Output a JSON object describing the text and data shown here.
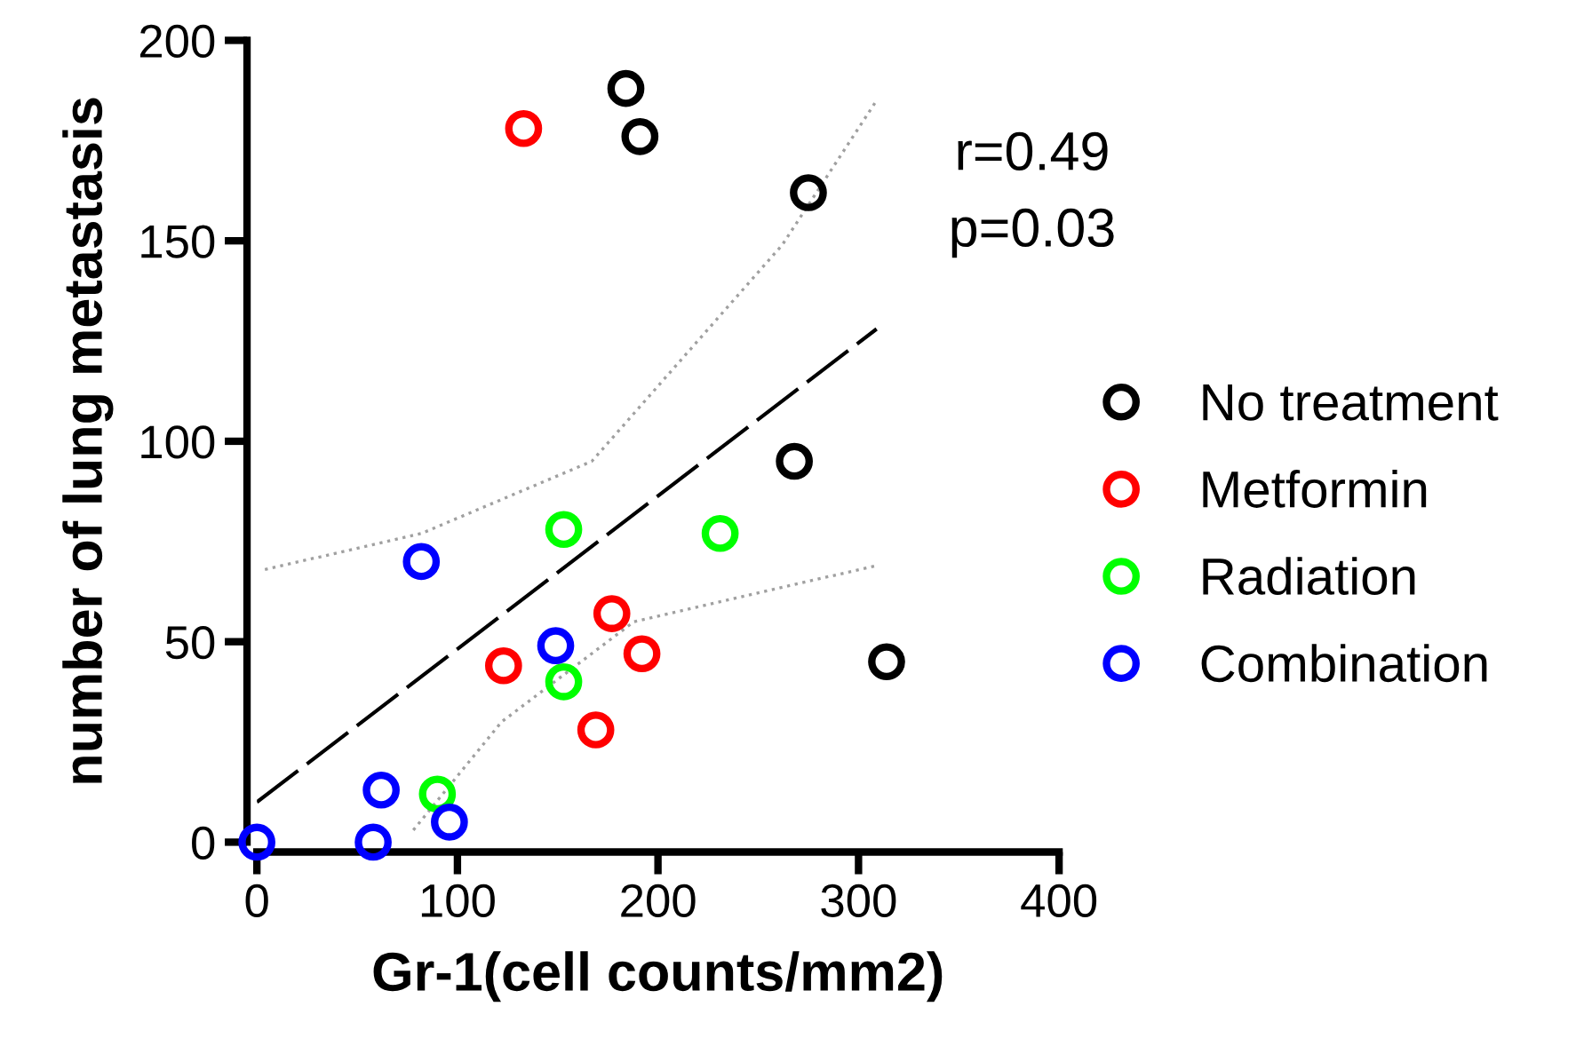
{
  "chart_data": {
    "type": "scatter",
    "xlabel": "Gr-1(cell counts/mm2)",
    "ylabel": "number of lung metastasis",
    "xlim": [
      0,
      400
    ],
    "ylim": [
      0,
      200
    ],
    "xticks": [
      0,
      100,
      200,
      300,
      400
    ],
    "yticks": [
      0,
      50,
      100,
      150,
      200
    ],
    "grid": false,
    "legend": "right",
    "marker": "circle",
    "annotations": [
      "r=0.49",
      "p=0.03"
    ],
    "series": [
      {
        "name": "No treatment",
        "color": "#000000",
        "x": [
          184,
          191,
          275,
          268,
          314
        ],
        "values": [
          188,
          176,
          162,
          95,
          45
        ]
      },
      {
        "name": "Metformin",
        "color": "#ff0000",
        "x": [
          133,
          177,
          192,
          123,
          169
        ],
        "values": [
          178,
          57,
          47,
          44,
          28
        ]
      },
      {
        "name": "Radiation",
        "color": "#00ff00",
        "x": [
          153,
          231,
          153,
          90
        ],
        "values": [
          78,
          77,
          40,
          12
        ]
      },
      {
        "name": "Combination",
        "color": "#0000ff",
        "x": [
          82,
          149,
          62,
          96,
          58,
          0
        ],
        "values": [
          70,
          49,
          13,
          5,
          0,
          0
        ]
      },
      {
        "type": "line",
        "color": "#000000",
        "line_style": "dashed",
        "marker": "none",
        "x": [
          0,
          309
        ],
        "values": [
          10,
          128
        ]
      },
      {
        "type": "line",
        "color": "#a0a0a0",
        "line_style": "dotted",
        "marker": "none",
        "x": [
          4,
          82,
          167,
          262,
          309
        ],
        "values": [
          68,
          77,
          95,
          149,
          185
        ]
      },
      {
        "type": "line",
        "color": "#a0a0a0",
        "line_style": "dotted",
        "marker": "none",
        "x": [
          78,
          122,
          188,
          309
        ],
        "values": [
          3,
          30,
          55,
          69
        ]
      }
    ]
  }
}
